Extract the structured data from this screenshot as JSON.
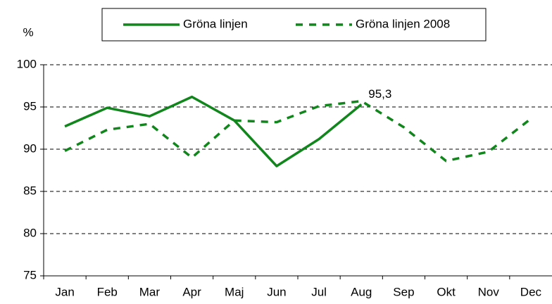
{
  "chart_data": {
    "type": "line",
    "y_label": "%",
    "categories": [
      "Jan",
      "Feb",
      "Mar",
      "Apr",
      "Maj",
      "Jun",
      "Jul",
      "Aug",
      "Sep",
      "Okt",
      "Nov",
      "Dec"
    ],
    "series": [
      {
        "name": "Gröna linjen",
        "color": "#11861c",
        "dash": false,
        "values": [
          92.7,
          94.9,
          93.9,
          96.2,
          93.4,
          88.0,
          91.2,
          95.3,
          null,
          null,
          null,
          null
        ],
        "value_labels": [
          null,
          null,
          null,
          null,
          null,
          null,
          null,
          "95,3",
          null,
          null,
          null,
          null
        ]
      },
      {
        "name": "Gröna linjen 2008",
        "color": "#11861c",
        "dash": true,
        "values": [
          89.8,
          92.3,
          93.0,
          89.0,
          93.4,
          93.2,
          95.1,
          95.7,
          92.6,
          88.6,
          89.7,
          93.6
        ]
      }
    ],
    "ylim": [
      75,
      100
    ],
    "yticks": [
      75,
      80,
      85,
      90,
      95,
      100
    ],
    "grid": true,
    "legend": "top"
  }
}
